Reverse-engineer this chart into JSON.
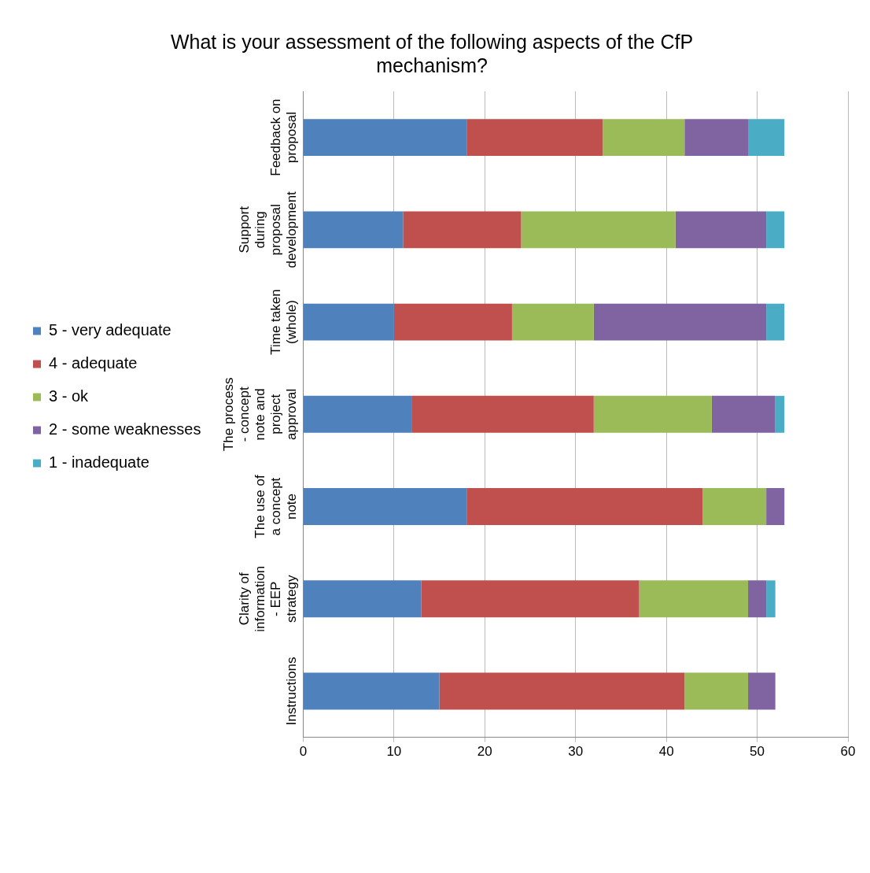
{
  "chart_data": {
    "type": "bar",
    "orientation": "horizontal",
    "stacked": true,
    "title": "What is your assessment of the following aspects of the CfP mechanism?",
    "categories": [
      "Feedback on proposal",
      "Support during proposal development",
      "Time taken (whole)",
      "The process - concept note and project approval",
      "The use of a concept note",
      "Clarity of information - EEP strategy",
      "Instructions"
    ],
    "series": [
      {
        "name": "5 - very adequate",
        "color": "#4f81bd",
        "values": [
          18,
          11,
          10,
          12,
          18,
          13,
          15
        ]
      },
      {
        "name": "4 - adequate",
        "color": "#c0504d",
        "values": [
          15,
          13,
          13,
          20,
          26,
          24,
          27
        ]
      },
      {
        "name": "3 - ok",
        "color": "#9bbb59",
        "values": [
          9,
          17,
          9,
          13,
          7,
          12,
          7
        ]
      },
      {
        "name": "2 - some weaknesses",
        "color": "#8064a2",
        "values": [
          7,
          10,
          19,
          7,
          2,
          2,
          3
        ]
      },
      {
        "name": "1 - inadequate",
        "color": "#4bacc6",
        "values": [
          4,
          2,
          2,
          1,
          0,
          1,
          0
        ]
      }
    ],
    "xlim": [
      0,
      60
    ],
    "xticks": [
      0,
      10,
      20,
      30,
      40,
      50,
      60
    ],
    "grid": "x",
    "legend": "left"
  }
}
